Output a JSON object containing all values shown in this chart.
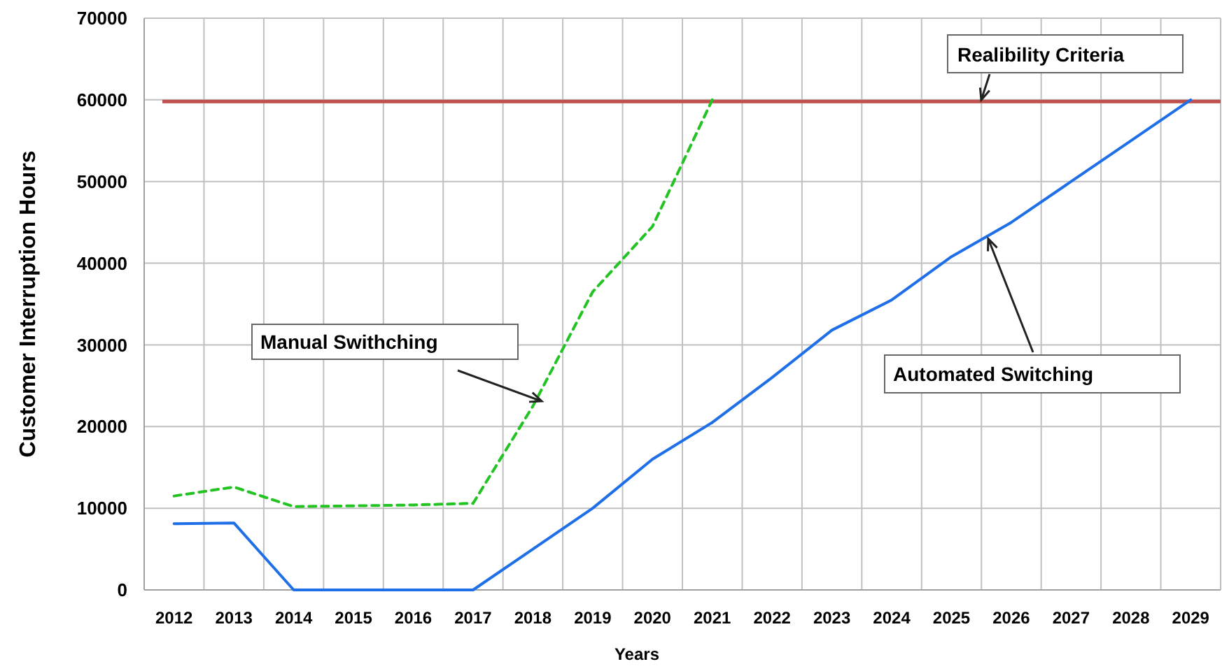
{
  "chart_data": {
    "type": "line",
    "xlabel": "Years",
    "ylabel": "Customer Interruption Hours",
    "categories": [
      "2012",
      "2013",
      "2014",
      "2015",
      "2016",
      "2017",
      "2018",
      "2019",
      "2020",
      "2021",
      "2022",
      "2023",
      "2024",
      "2025",
      "2026",
      "2027",
      "2028",
      "2029"
    ],
    "series": [
      {
        "color": "#22c322",
        "line_style": "dashed",
        "values": [
          11500,
          12600,
          10200,
          10300,
          10400,
          10600,
          22500,
          36500,
          44500,
          60000,
          null,
          null,
          null,
          null,
          null,
          null,
          null,
          null
        ]
      },
      {
        "color": "#1f6fe8",
        "line_style": "solid",
        "values": [
          8100,
          8200,
          0,
          0,
          0,
          0,
          5000,
          10000,
          16000,
          20500,
          26000,
          31800,
          35500,
          40800,
          45000,
          50000,
          55000,
          60000
        ]
      }
    ],
    "ylim": [
      0,
      70000
    ],
    "yticks": [
      0,
      10000,
      20000,
      30000,
      40000,
      50000,
      60000,
      70000
    ],
    "grid": true,
    "marker": "none",
    "ref_lines": [
      {
        "axis": "y",
        "value": 59800,
        "label": "Realibility Criteria",
        "color": "#c0504d"
      }
    ],
    "annotations": [
      "Manual Swithching",
      {
        "text": "Automated Switching",
        "y": 43000
      }
    ]
  }
}
